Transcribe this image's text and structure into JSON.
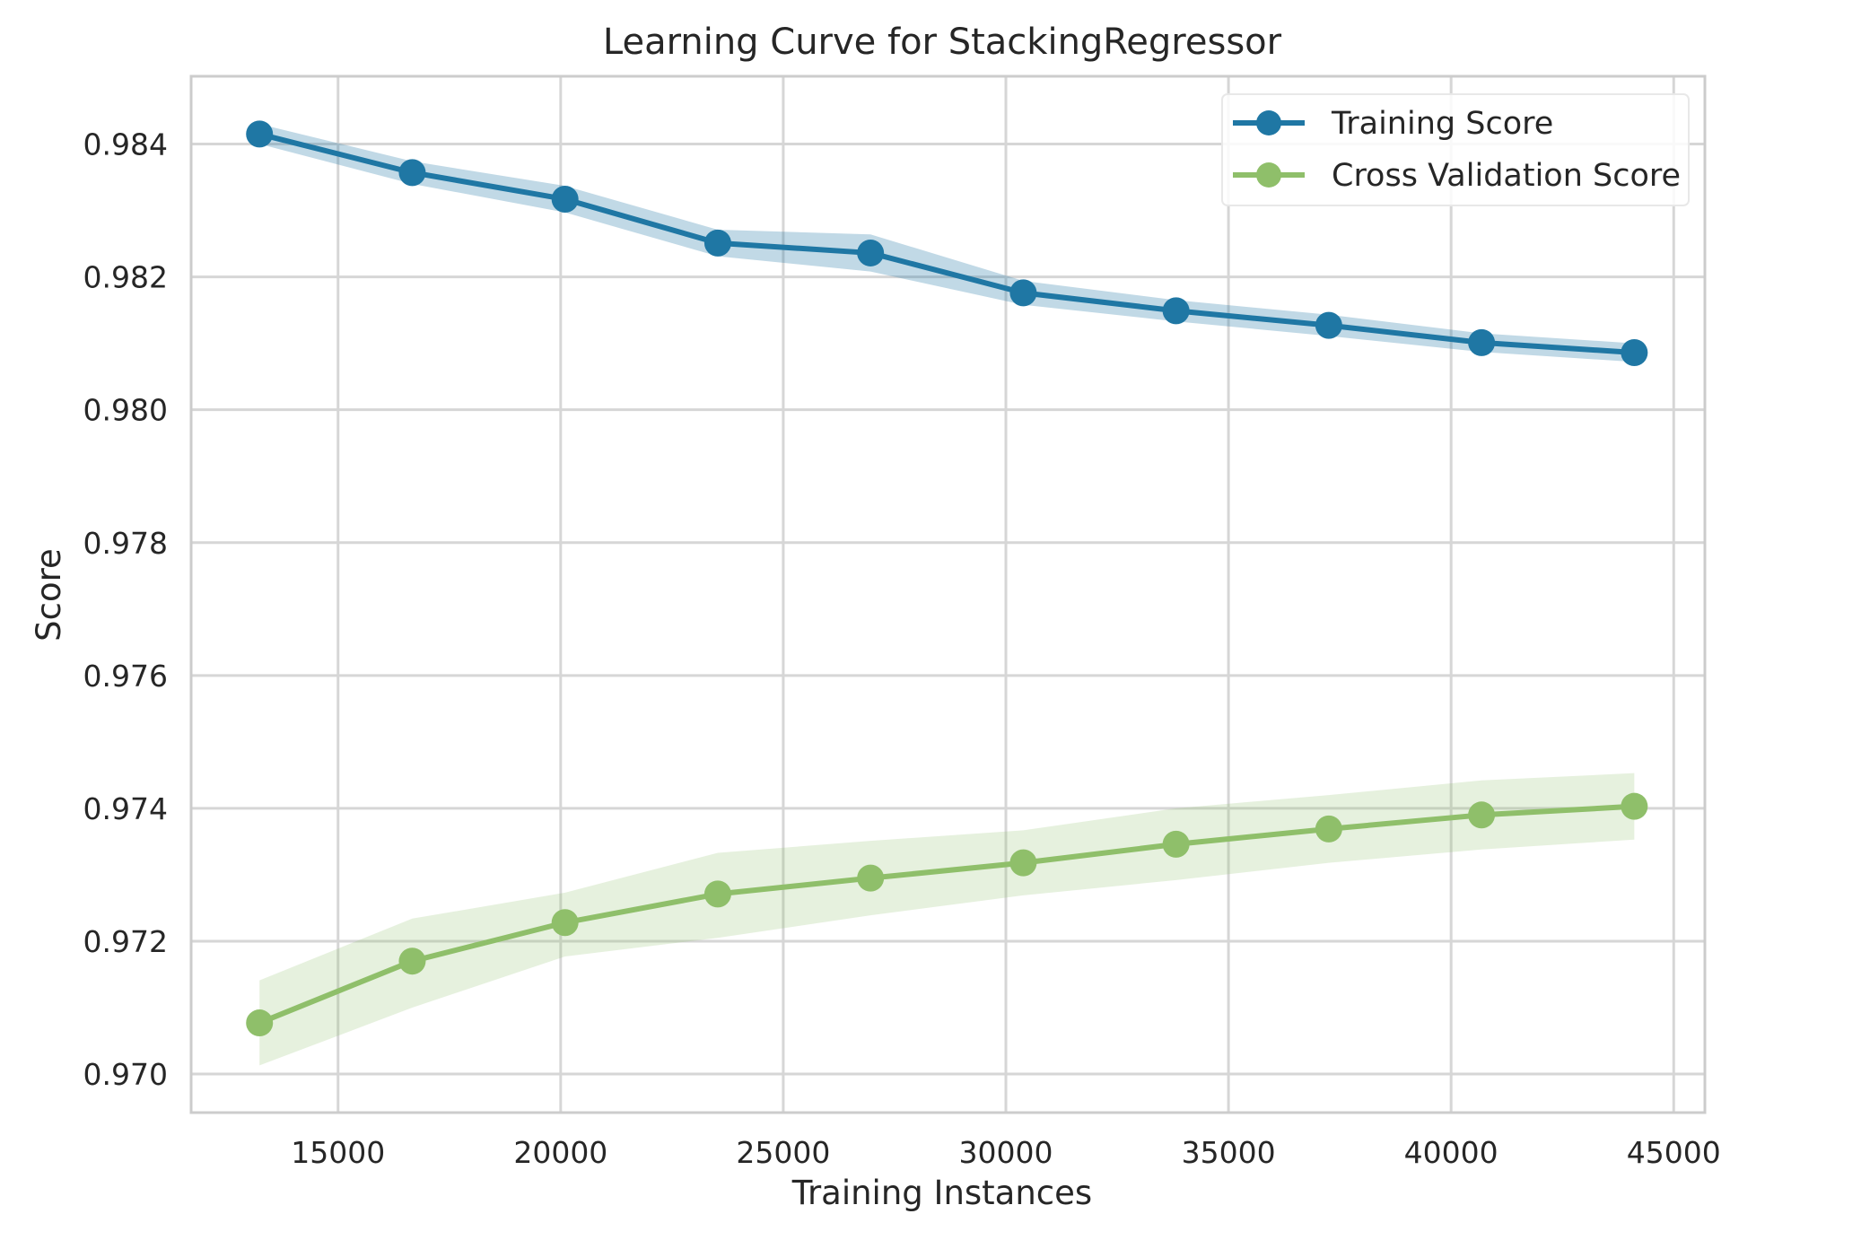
{
  "chart_data": {
    "type": "line",
    "title": "Learning Curve for StackingRegressor",
    "xlabel": "Training Instances",
    "ylabel": "Score",
    "xlim": [
      11700,
      45700
    ],
    "ylim": [
      0.96942,
      0.98502
    ],
    "xticks": [
      15000,
      20000,
      25000,
      30000,
      35000,
      40000,
      45000
    ],
    "xtick_labels": [
      "15000",
      "20000",
      "25000",
      "30000",
      "35000",
      "40000",
      "45000"
    ],
    "yticks": [
      0.97,
      0.972,
      0.974,
      0.976,
      0.978,
      0.98,
      0.982,
      0.984
    ],
    "ytick_labels": [
      "0.970",
      "0.972",
      "0.974",
      "0.976",
      "0.978",
      "0.980",
      "0.982",
      "0.984"
    ],
    "grid": true,
    "legend_position": "top-right",
    "x": [
      13236,
      16667,
      20098,
      23529,
      26960,
      30391,
      33822,
      37253,
      40684,
      44115
    ],
    "series": [
      {
        "name": "Training Score",
        "color": "#1f77a4",
        "band_color": "#1f77a4",
        "values": [
          0.98415,
          0.98357,
          0.98317,
          0.98251,
          0.98236,
          0.98176,
          0.98149,
          0.98127,
          0.98101,
          0.98086
        ],
        "lower": [
          0.984,
          0.9834,
          0.98297,
          0.98231,
          0.98208,
          0.98158,
          0.98133,
          0.98111,
          0.98087,
          0.98072
        ],
        "upper": [
          0.9843,
          0.98374,
          0.98337,
          0.98271,
          0.98264,
          0.98194,
          0.98165,
          0.98143,
          0.98115,
          0.981
        ]
      },
      {
        "name": "Cross Validation Score",
        "color": "#8fbf6a",
        "band_color": "#8fbf6a",
        "values": [
          0.97077,
          0.9717,
          0.97228,
          0.97271,
          0.97295,
          0.97318,
          0.97346,
          0.97369,
          0.9739,
          0.97403
        ],
        "lower": [
          0.97013,
          0.971,
          0.97177,
          0.97205,
          0.97239,
          0.97269,
          0.97292,
          0.97318,
          0.97338,
          0.97353
        ],
        "upper": [
          0.97141,
          0.97234,
          0.97273,
          0.97333,
          0.97351,
          0.97367,
          0.974,
          0.9742,
          0.97442,
          0.97453
        ]
      }
    ]
  }
}
